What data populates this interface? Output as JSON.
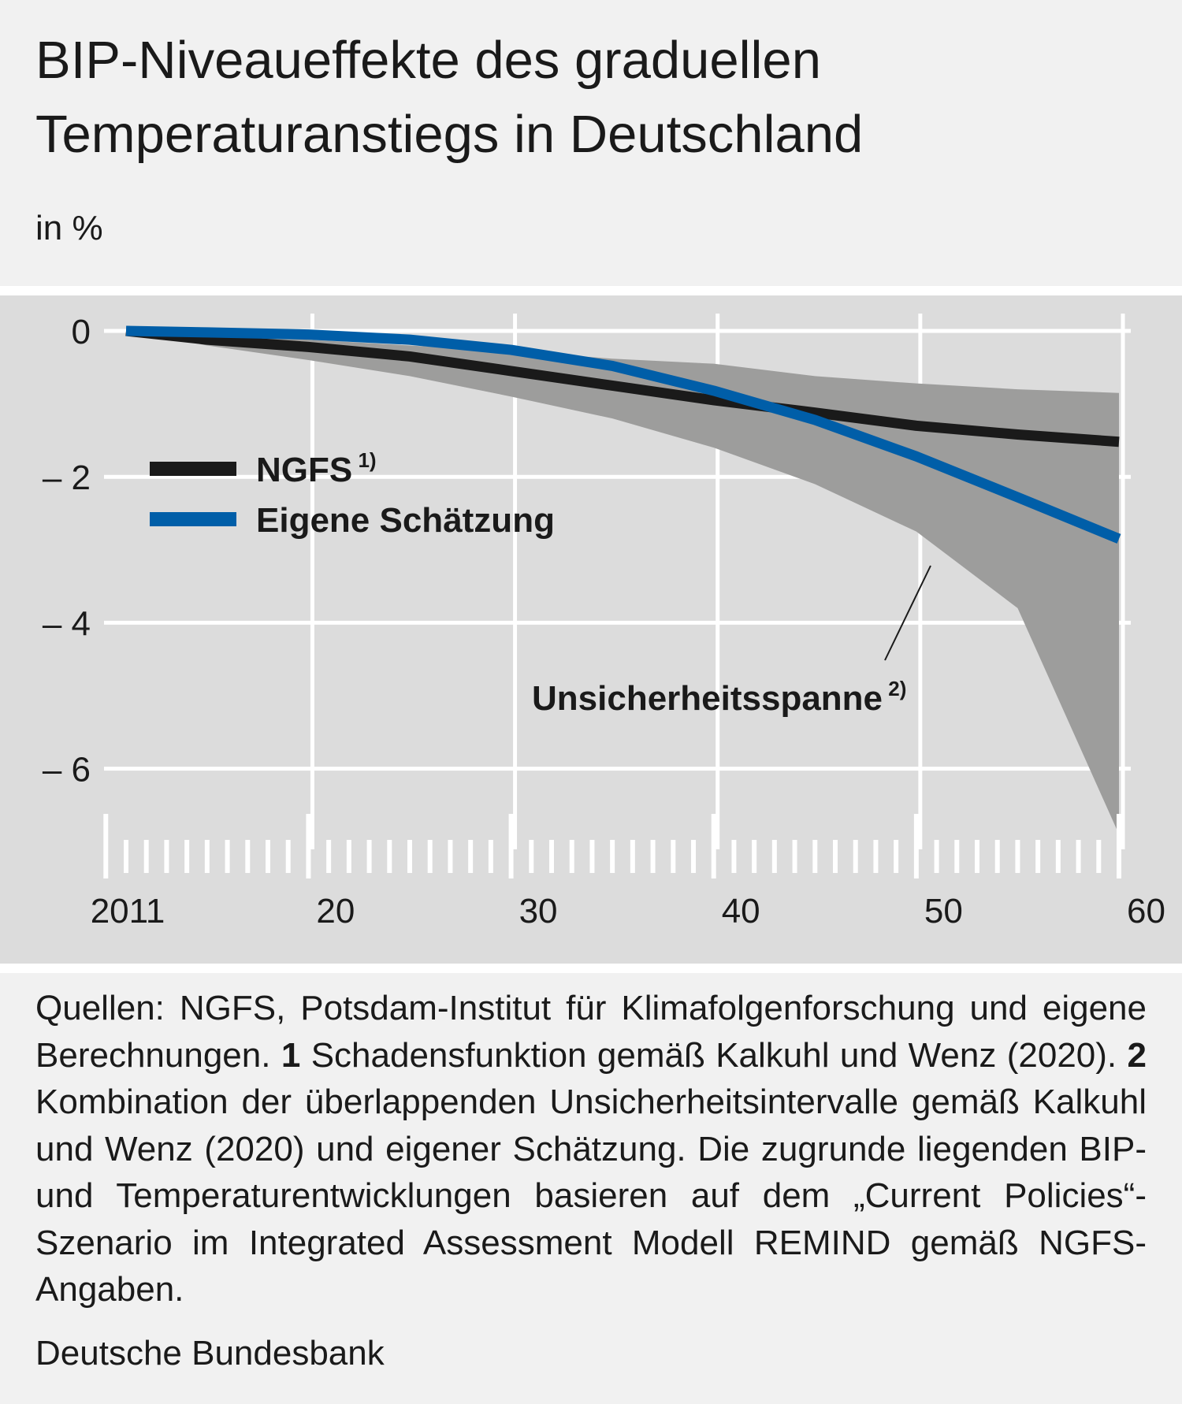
{
  "title": "BIP-Niveaueffekte des graduellen Temperaturanstiegs in Deutschland",
  "unit_label": "in %",
  "chart_data": {
    "type": "line",
    "ylabel": "in %",
    "ylim": [
      -7,
      0.3
    ],
    "xlim": [
      2011,
      2060
    ],
    "yticks": [
      0,
      -2,
      -4,
      -6
    ],
    "ytick_labels": [
      "0",
      "– 2",
      "– 4",
      "– 6"
    ],
    "xticks": [
      2011,
      2020,
      2030,
      2040,
      2050,
      2060
    ],
    "xtick_labels": [
      "2011",
      "20",
      "30",
      "40",
      "50",
      "60"
    ],
    "grid": true,
    "legend_position": "left",
    "series": [
      {
        "name": "NGFS",
        "superscript": "1)",
        "color": "#1a1a1a",
        "x": [
          2011,
          2015,
          2020,
          2025,
          2030,
          2035,
          2040,
          2045,
          2050,
          2055,
          2060
        ],
        "values": [
          0,
          -0.12,
          -0.22,
          -0.35,
          -0.55,
          -0.75,
          -0.95,
          -1.12,
          -1.3,
          -1.42,
          -1.52
        ]
      },
      {
        "name": "Eigene Schätzung",
        "superscript": "",
        "color": "#005ea8",
        "x": [
          2011,
          2015,
          2020,
          2025,
          2030,
          2035,
          2040,
          2045,
          2050,
          2055,
          2060
        ],
        "values": [
          0,
          -0.02,
          -0.05,
          -0.12,
          -0.26,
          -0.48,
          -0.82,
          -1.22,
          -1.72,
          -2.28,
          -2.85
        ]
      }
    ],
    "band": {
      "name": "Unsicherheitsspanne",
      "superscript": "2)",
      "color": "#9d9d9c",
      "x": [
        2011,
        2015,
        2020,
        2025,
        2030,
        2035,
        2040,
        2045,
        2050,
        2055,
        2060
      ],
      "upper": [
        0,
        -0.05,
        -0.12,
        -0.2,
        -0.28,
        -0.38,
        -0.45,
        -0.62,
        -0.72,
        -0.8,
        -0.85
      ],
      "lower": [
        0,
        -0.2,
        -0.4,
        -0.62,
        -0.9,
        -1.2,
        -1.6,
        -2.1,
        -2.75,
        -3.8,
        -6.9
      ]
    }
  },
  "notes": {
    "part1": "Quellen: NGFS, Potsdam-Institut für Klimafolgenforschung und eigene Berechnungen. ",
    "fn1_num": "1",
    "fn1_text": " Schadensfunktion gemäß Kalkuhl und Wenz (2020). ",
    "fn2_num": "2",
    "fn2_text": " Kombination der überlappenden Unsicherheitsintervalle gemäß Kalkuhl und Wenz (2020) und eigener Schätzung. Die zugrunde liegenden BIP- und Temperaturentwicklungen basieren auf dem „Current Policies“-Szenario im Integrated Assessment Modell REMIND gemäß NGFS-Angaben."
  },
  "source": "Deutsche Bundesbank"
}
